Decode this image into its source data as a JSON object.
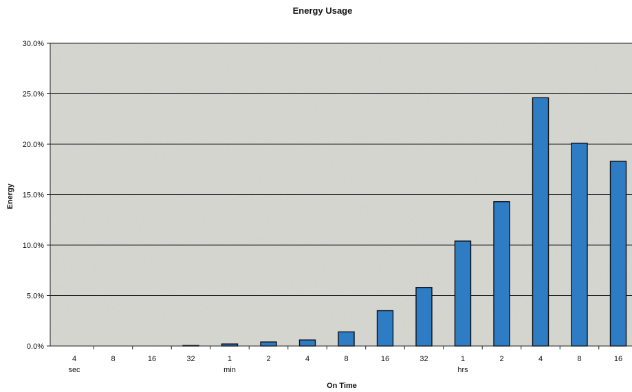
{
  "chart_data": {
    "type": "bar",
    "title": "Energy Usage",
    "xlabel": "On Time",
    "ylabel": "Energy",
    "categories": [
      "4",
      "8",
      "16",
      "32",
      "1",
      "2",
      "4",
      "8",
      "16",
      "32",
      "1",
      "2",
      "4",
      "8",
      "16"
    ],
    "category_units": [
      "sec",
      "",
      "",
      "",
      "min",
      "",
      "",
      "",
      "",
      "",
      "hrs",
      "",
      "",
      "",
      ""
    ],
    "values": [
      0.0,
      0.0,
      0.0,
      0.05,
      0.2,
      0.4,
      0.6,
      1.4,
      3.5,
      5.8,
      10.4,
      14.3,
      24.6,
      20.1,
      18.3
    ],
    "ylim": [
      0,
      30
    ],
    "yticks": [
      0,
      5,
      10,
      15,
      20,
      25,
      30
    ],
    "ytick_labels": [
      "0.0%",
      "5.0%",
      "10.0%",
      "15.0%",
      "20.0%",
      "25.0%",
      "30.0%"
    ],
    "grid": true,
    "legend": "none",
    "colors": {
      "bar_fill": "#2e7dc4",
      "bar_stroke": "#0e0e14",
      "plot_background": "#d9d9d4",
      "gridline": "#1a1a1a"
    }
  }
}
